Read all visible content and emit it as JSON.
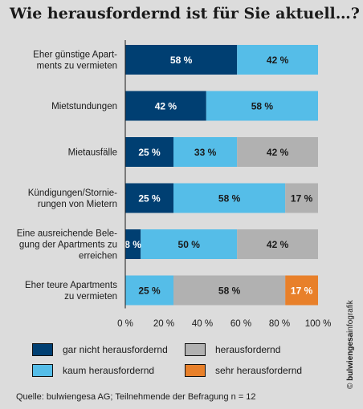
{
  "chart_data": {
    "type": "bar",
    "orientation": "horizontal",
    "stacked": true,
    "title": "Wie herausfordernd ist für Sie aktuell…?",
    "categories": [
      [
        "Eher günstige Apart-",
        "ments zu vermieten"
      ],
      [
        "Mietstundungen"
      ],
      [
        "Mietausfälle"
      ],
      [
        "Kündigungen/Stornie-",
        "rungen von Mietern"
      ],
      [
        "Eine ausreichende Bele-",
        "gung der Apartments zu",
        "erreichen"
      ],
      [
        "Eher teure Apartments",
        "zu vermieten"
      ]
    ],
    "series": [
      {
        "name": "gar nicht herausfordernd",
        "color": "#003f72",
        "values": [
          58,
          42,
          25,
          25,
          8,
          0
        ],
        "labels": [
          "58 %",
          "42 %",
          "25 %",
          "25 %",
          "8 %",
          ""
        ]
      },
      {
        "name": "kaum herausfordernd",
        "color": "#55bde8",
        "values": [
          42,
          58,
          33,
          58,
          50,
          25
        ],
        "labels": [
          "42 %",
          "58 %",
          "33 %",
          "58 %",
          "50 %",
          "25 %"
        ]
      },
      {
        "name": "herausfordernd",
        "color": "#b1b1b1",
        "values": [
          0,
          0,
          42,
          17,
          42,
          58
        ],
        "labels": [
          "",
          "",
          "42 %",
          "17 %",
          "42 %",
          "58 %"
        ]
      },
      {
        "name": "sehr herausfordernd",
        "color": "#e8802a",
        "values": [
          0,
          0,
          0,
          0,
          0,
          17
        ],
        "labels": [
          "",
          "",
          "",
          "",
          "",
          "17 %"
        ]
      }
    ],
    "xlim": [
      0,
      100
    ],
    "xticks": [
      "0 %",
      "20 %",
      "40 %",
      "60 %",
      "80 %",
      "100 %"
    ],
    "grid": false,
    "legend_position": "bottom"
  },
  "legend": [
    {
      "label": "gar nicht herausfordernd",
      "color": "#003f72"
    },
    {
      "label": "herausfordernd",
      "color": "#b1b1b1"
    },
    {
      "label": "kaum herausfordernd",
      "color": "#55bde8"
    },
    {
      "label": "sehr herausfordernd",
      "color": "#e8802a"
    }
  ],
  "source": "Quelle: bulwiengesa AG; Teilnehmende der Befragung n = 12",
  "credit": {
    "prefix": "© ",
    "brand": "bulwiengesa",
    "suffix": "infografik"
  }
}
